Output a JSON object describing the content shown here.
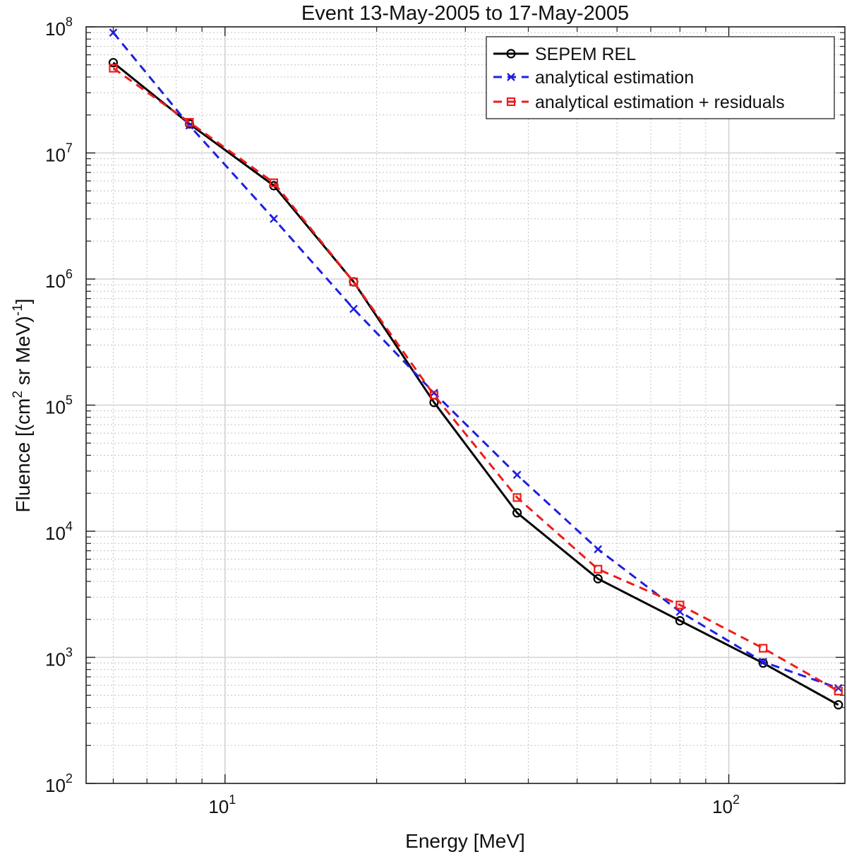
{
  "chart_data": {
    "type": "line",
    "title": "Event 13-May-2005 to 17-May-2005",
    "xlabel": "Energy [MeV]",
    "ylabel": "Fluence [(cm",
    "ylabel_sup1": "2",
    "ylabel_mid": " sr MeV)",
    "ylabel_sup2": "-1",
    "ylabel_end": "]",
    "xscale": "log",
    "yscale": "log",
    "xlim": [
      5.3,
      170
    ],
    "ylim": [
      100,
      100000000
    ],
    "grid": true,
    "legend_position": "top-right",
    "x_ticks": [
      {
        "value": 10,
        "base": "10",
        "exp": "1"
      },
      {
        "value": 100,
        "base": "10",
        "exp": "2"
      }
    ],
    "y_ticks": [
      {
        "value": 100,
        "base": "10",
        "exp": "2"
      },
      {
        "value": 1000,
        "base": "10",
        "exp": "3"
      },
      {
        "value": 10000,
        "base": "10",
        "exp": "4"
      },
      {
        "value": 100000,
        "base": "10",
        "exp": "5"
      },
      {
        "value": 1000000,
        "base": "10",
        "exp": "6"
      },
      {
        "value": 10000000,
        "base": "10",
        "exp": "7"
      },
      {
        "value": 100000000,
        "base": "10",
        "exp": "8"
      }
    ],
    "x": [
      6.0,
      8.5,
      12.5,
      18.0,
      26.0,
      38.0,
      55.0,
      80.0,
      117.0,
      165.0
    ],
    "series": [
      {
        "name": "SEPEM REL",
        "color": "#000000",
        "dash": "solid",
        "marker": "circle",
        "values": [
          52000000,
          17000000,
          5500000,
          950000,
          105000,
          14000,
          4200,
          1950,
          900,
          420
        ]
      },
      {
        "name": "analytical estimation",
        "color": "#1f1fe0",
        "dash": "dashed",
        "marker": "x",
        "values": [
          90000000,
          16500000,
          3000000,
          580000,
          125000,
          28000,
          7200,
          2300,
          920,
          570
        ]
      },
      {
        "name": "analytical estimation + residuals",
        "color": "#ee1c1c",
        "dash": "dashed",
        "marker": "square",
        "values": [
          47000000,
          17500000,
          5800000,
          950000,
          120000,
          18500,
          5000,
          2600,
          1180,
          540
        ]
      }
    ]
  }
}
